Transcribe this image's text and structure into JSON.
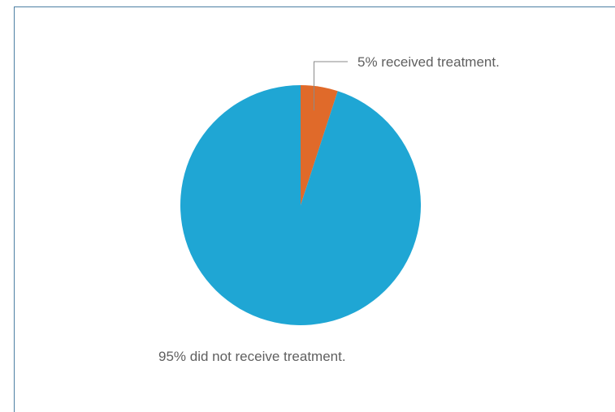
{
  "chart_data": {
    "type": "pie",
    "title": "",
    "slices": [
      {
        "label": "5% received treatment.",
        "value": 5,
        "color": "#e06a2a"
      },
      {
        "label": "95% did not receive treatment.",
        "value": 95,
        "color": "#1fa6d4"
      }
    ],
    "start_angle_deg": 0,
    "direction": "clockwise",
    "legend": "none"
  }
}
